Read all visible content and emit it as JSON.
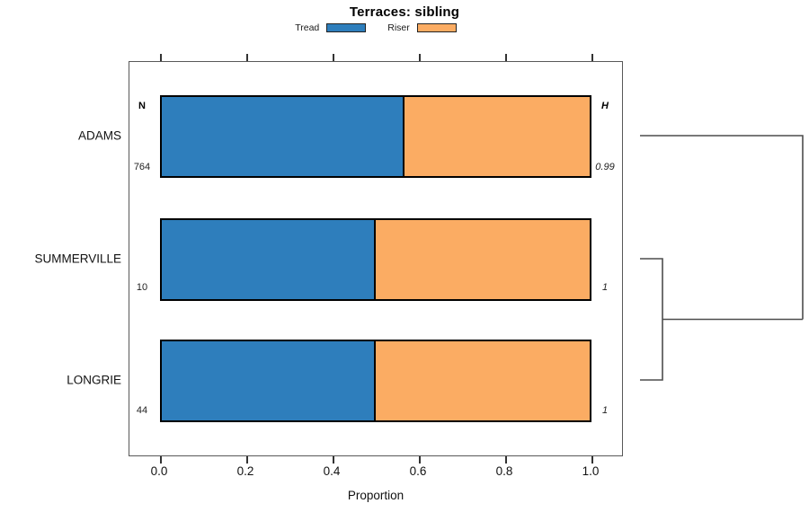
{
  "title": "Terraces: sibling",
  "legend": [
    {
      "label": "Tread",
      "color": "#2E7EBC"
    },
    {
      "label": "Riser",
      "color": "#FBAC63"
    }
  ],
  "columns": {
    "n_header": "N",
    "h_header": "H"
  },
  "rows": [
    {
      "label": "ADAMS",
      "n": "764",
      "h": "0.99",
      "tread": 0.567,
      "riser": 0.433
    },
    {
      "label": "SUMMERVILLE",
      "n": "10",
      "h": "1",
      "tread": 0.5,
      "riser": 0.5
    },
    {
      "label": "LONGRIE",
      "n": "44",
      "h": "1",
      "tread": 0.5,
      "riser": 0.5
    }
  ],
  "x_ticks": [
    "0.0",
    "0.2",
    "0.4",
    "0.6",
    "0.8",
    "1.0"
  ],
  "xlabel": "Proportion",
  "chart_data": {
    "type": "bar",
    "subtype": "stacked-horizontal",
    "title": "Terraces: sibling",
    "categories": [
      "ADAMS",
      "SUMMERVILLE",
      "LONGRIE"
    ],
    "series": [
      {
        "name": "Tread",
        "values": [
          0.57,
          0.5,
          0.5
        ]
      },
      {
        "name": "Riser",
        "values": [
          0.43,
          0.5,
          0.5
        ]
      }
    ],
    "annotations": {
      "N": [
        764,
        10,
        44
      ],
      "H": [
        0.99,
        1,
        1
      ]
    },
    "xlabel": "Proportion",
    "xlim": [
      0,
      1
    ],
    "x_ticks": [
      0.0,
      0.2,
      0.4,
      0.6,
      0.8,
      1.0
    ],
    "legend_position": "top",
    "grid": false,
    "colors": {
      "Tread": "#2E7EBC",
      "Riser": "#FBAC63"
    },
    "dendrogram": {
      "side": "right",
      "leaf_order": [
        "ADAMS",
        "SUMMERVILLE",
        "LONGRIE"
      ],
      "joins": [
        {
          "members": [
            "SUMMERVILLE",
            "LONGRIE"
          ],
          "depth": "shallow"
        },
        {
          "members": [
            "ADAMS",
            "SUMMERVILLE+LONGRIE"
          ],
          "depth": "deep"
        }
      ]
    }
  }
}
